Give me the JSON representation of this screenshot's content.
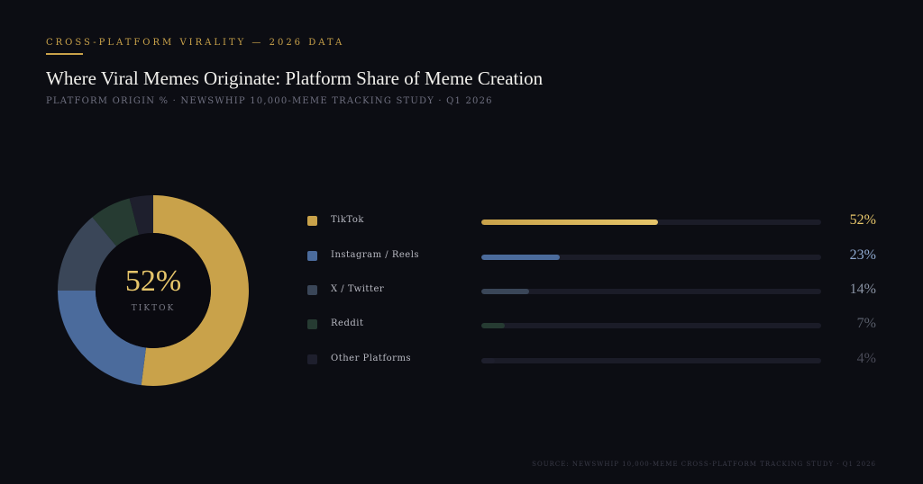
{
  "header": {
    "eyebrow": "CROSS-PLATFORM VIRALITY — 2026 DATA",
    "title": "Where Viral Memes Originate: Platform Share of Meme Creation",
    "subtitle": "PLATFORM ORIGIN % · NEWSWHIP 10,000-MEME TRACKING STUDY · Q1 2026"
  },
  "donut": {
    "center_value": "52%",
    "center_label": "TIKTOK"
  },
  "legend": {
    "items": [
      {
        "label": "TikTok",
        "value": "52%"
      },
      {
        "label": "Instagram / Reels",
        "value": "23%"
      },
      {
        "label": "X / Twitter",
        "value": "14%"
      },
      {
        "label": "Reddit",
        "value": "7%"
      },
      {
        "label": "Other Platforms",
        "value": "4%"
      }
    ]
  },
  "footer": {
    "source": "SOURCE: NEWSWHIP 10,000-MEME CROSS-PLATFORM TRACKING STUDY · Q1 2026"
  },
  "chart_data": {
    "type": "pie",
    "categories": [
      "TikTok",
      "Instagram / Reels",
      "X / Twitter",
      "Reddit",
      "Other Platforms"
    ],
    "values": [
      52,
      23,
      14,
      7,
      4
    ],
    "title": "Where Viral Memes Originate: Platform Share of Meme Creation",
    "unit": "%",
    "colors": [
      "#c9a24a",
      "#4b6b9c",
      "#3a4658",
      "#263b32",
      "#1e1f2d"
    ],
    "value_colors": [
      "#e6c56a",
      "#8fa9cf",
      "#8a93a4",
      "#5a5f6b",
      "#4a4b58"
    ],
    "track_color": "#1b1c28"
  }
}
